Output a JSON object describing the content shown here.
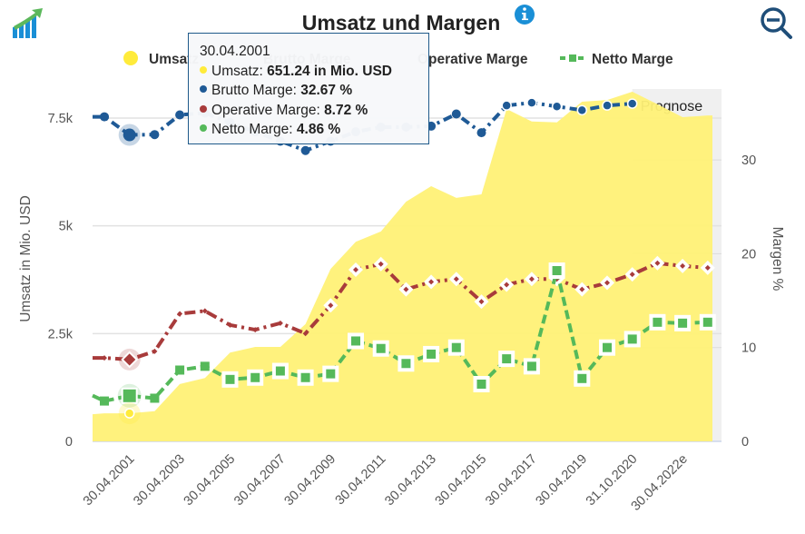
{
  "header": {
    "title": "Umsatz und Margen",
    "info_icon": "info-icon",
    "logo_icon": "growth-chart-icon",
    "zoom_out_icon": "zoom-out-icon"
  },
  "colors": {
    "umsatz": "#fff176",
    "umsatz_dot": "#ffeb3b",
    "brutto": "#1f5a96",
    "operative": "#a83b3b",
    "netto": "#55b95a",
    "forecast_band": "#f0f0f0"
  },
  "tooltip": {
    "date": "30.04.2001",
    "rows": [
      {
        "label": "Umsatz: ",
        "value": "651.24 in Mio. USD",
        "color": "#ffeb3b"
      },
      {
        "label": "Brutto Marge: ",
        "value": "32.67 %",
        "color": "#1f5a96"
      },
      {
        "label": "Operative Marge: ",
        "value": "8.72 %",
        "color": "#a83b3b"
      },
      {
        "label": "Netto Marge: ",
        "value": "4.86 %",
        "color": "#55b95a"
      }
    ]
  },
  "chart_data": {
    "type": "line",
    "title": "Umsatz und Margen",
    "legend": [
      "Umsatz",
      "Brutto Marge",
      "Operative Marge",
      "Netto Marge"
    ],
    "legend_position": "top-center",
    "x": [
      "30.04.2000",
      "30.04.2001",
      "30.04.2002",
      "30.04.2003",
      "30.04.2004",
      "30.04.2005",
      "30.04.2006",
      "30.04.2007",
      "30.04.2008",
      "30.04.2009",
      "30.04.2010",
      "30.04.2011",
      "30.04.2012",
      "30.04.2013",
      "30.04.2014",
      "30.04.2015",
      "30.04.2016",
      "30.04.2017",
      "30.04.2018",
      "30.04.2019",
      "30.04.2020",
      "31.10.2020",
      "30.04.2021e",
      "30.04.2022e",
      "30.04.2023e"
    ],
    "x_tick_labels": [
      "30.04.2001",
      "30.04.2003",
      "30.04.2005",
      "30.04.2007",
      "30.04.2009",
      "30.04.2011",
      "30.04.2013",
      "30.04.2015",
      "30.04.2017",
      "30.04.2019",
      "31.10.2020",
      "30.04.2022e"
    ],
    "x_tick_indices": [
      1,
      3,
      5,
      7,
      9,
      11,
      13,
      15,
      17,
      19,
      21,
      23
    ],
    "forecast_band": {
      "label": "Prognose",
      "from_index": 21
    },
    "y_left": {
      "label": "Umsatz in Mio. USD",
      "ticks": [
        "0",
        "2.5k",
        "5k",
        "7.5k"
      ],
      "tick_values": [
        0,
        2500,
        5000,
        7500
      ],
      "range": [
        0,
        7500
      ]
    },
    "y_right": {
      "label": "Margen %",
      "ticks": [
        "0",
        "10",
        "20",
        "30"
      ],
      "tick_values": [
        0,
        10,
        20,
        30
      ],
      "range": [
        0,
        34.5
      ]
    },
    "grid": true,
    "hover_index": 1,
    "series": [
      {
        "name": "Umsatz",
        "type": "area",
        "axis": "left",
        "values": [
          650,
          651.24,
          700,
          1330,
          1470,
          2060,
          2190,
          2190,
          2720,
          4000,
          4630,
          4870,
          5560,
          5920,
          5650,
          5730,
          7710,
          7420,
          7400,
          7880,
          7920,
          8110,
          7820,
          7520,
          7560
        ]
      },
      {
        "name": "Brutto Marge",
        "type": "line",
        "axis": "right",
        "values": [
          34.6,
          32.67,
          32.7,
          34.8,
          35.0,
          34.0,
          33.0,
          32.0,
          31.0,
          32.0,
          33.0,
          33.5,
          33.5,
          33.6,
          34.9,
          32.9,
          35.8,
          36.1,
          35.7,
          35.3,
          35.8,
          36.0,
          null,
          null,
          null
        ]
      },
      {
        "name": "Operative Marge",
        "type": "line",
        "axis": "right",
        "values": [
          8.9,
          8.72,
          9.6,
          13.6,
          13.9,
          12.4,
          11.9,
          12.6,
          11.5,
          14.5,
          18.3,
          18.9,
          16.2,
          17.0,
          17.3,
          14.9,
          16.7,
          17.3,
          17.3,
          16.2,
          16.9,
          17.8,
          19.0,
          18.7,
          18.5
        ]
      },
      {
        "name": "Netto Marge",
        "type": "line",
        "axis": "right",
        "values": [
          4.3,
          4.86,
          4.6,
          7.6,
          8.0,
          6.6,
          6.8,
          7.5,
          6.8,
          7.2,
          10.7,
          9.9,
          8.3,
          9.3,
          10.0,
          6.1,
          8.8,
          8.0,
          18.2,
          6.7,
          10.0,
          10.9,
          12.7,
          12.6,
          12.7
        ]
      }
    ]
  }
}
